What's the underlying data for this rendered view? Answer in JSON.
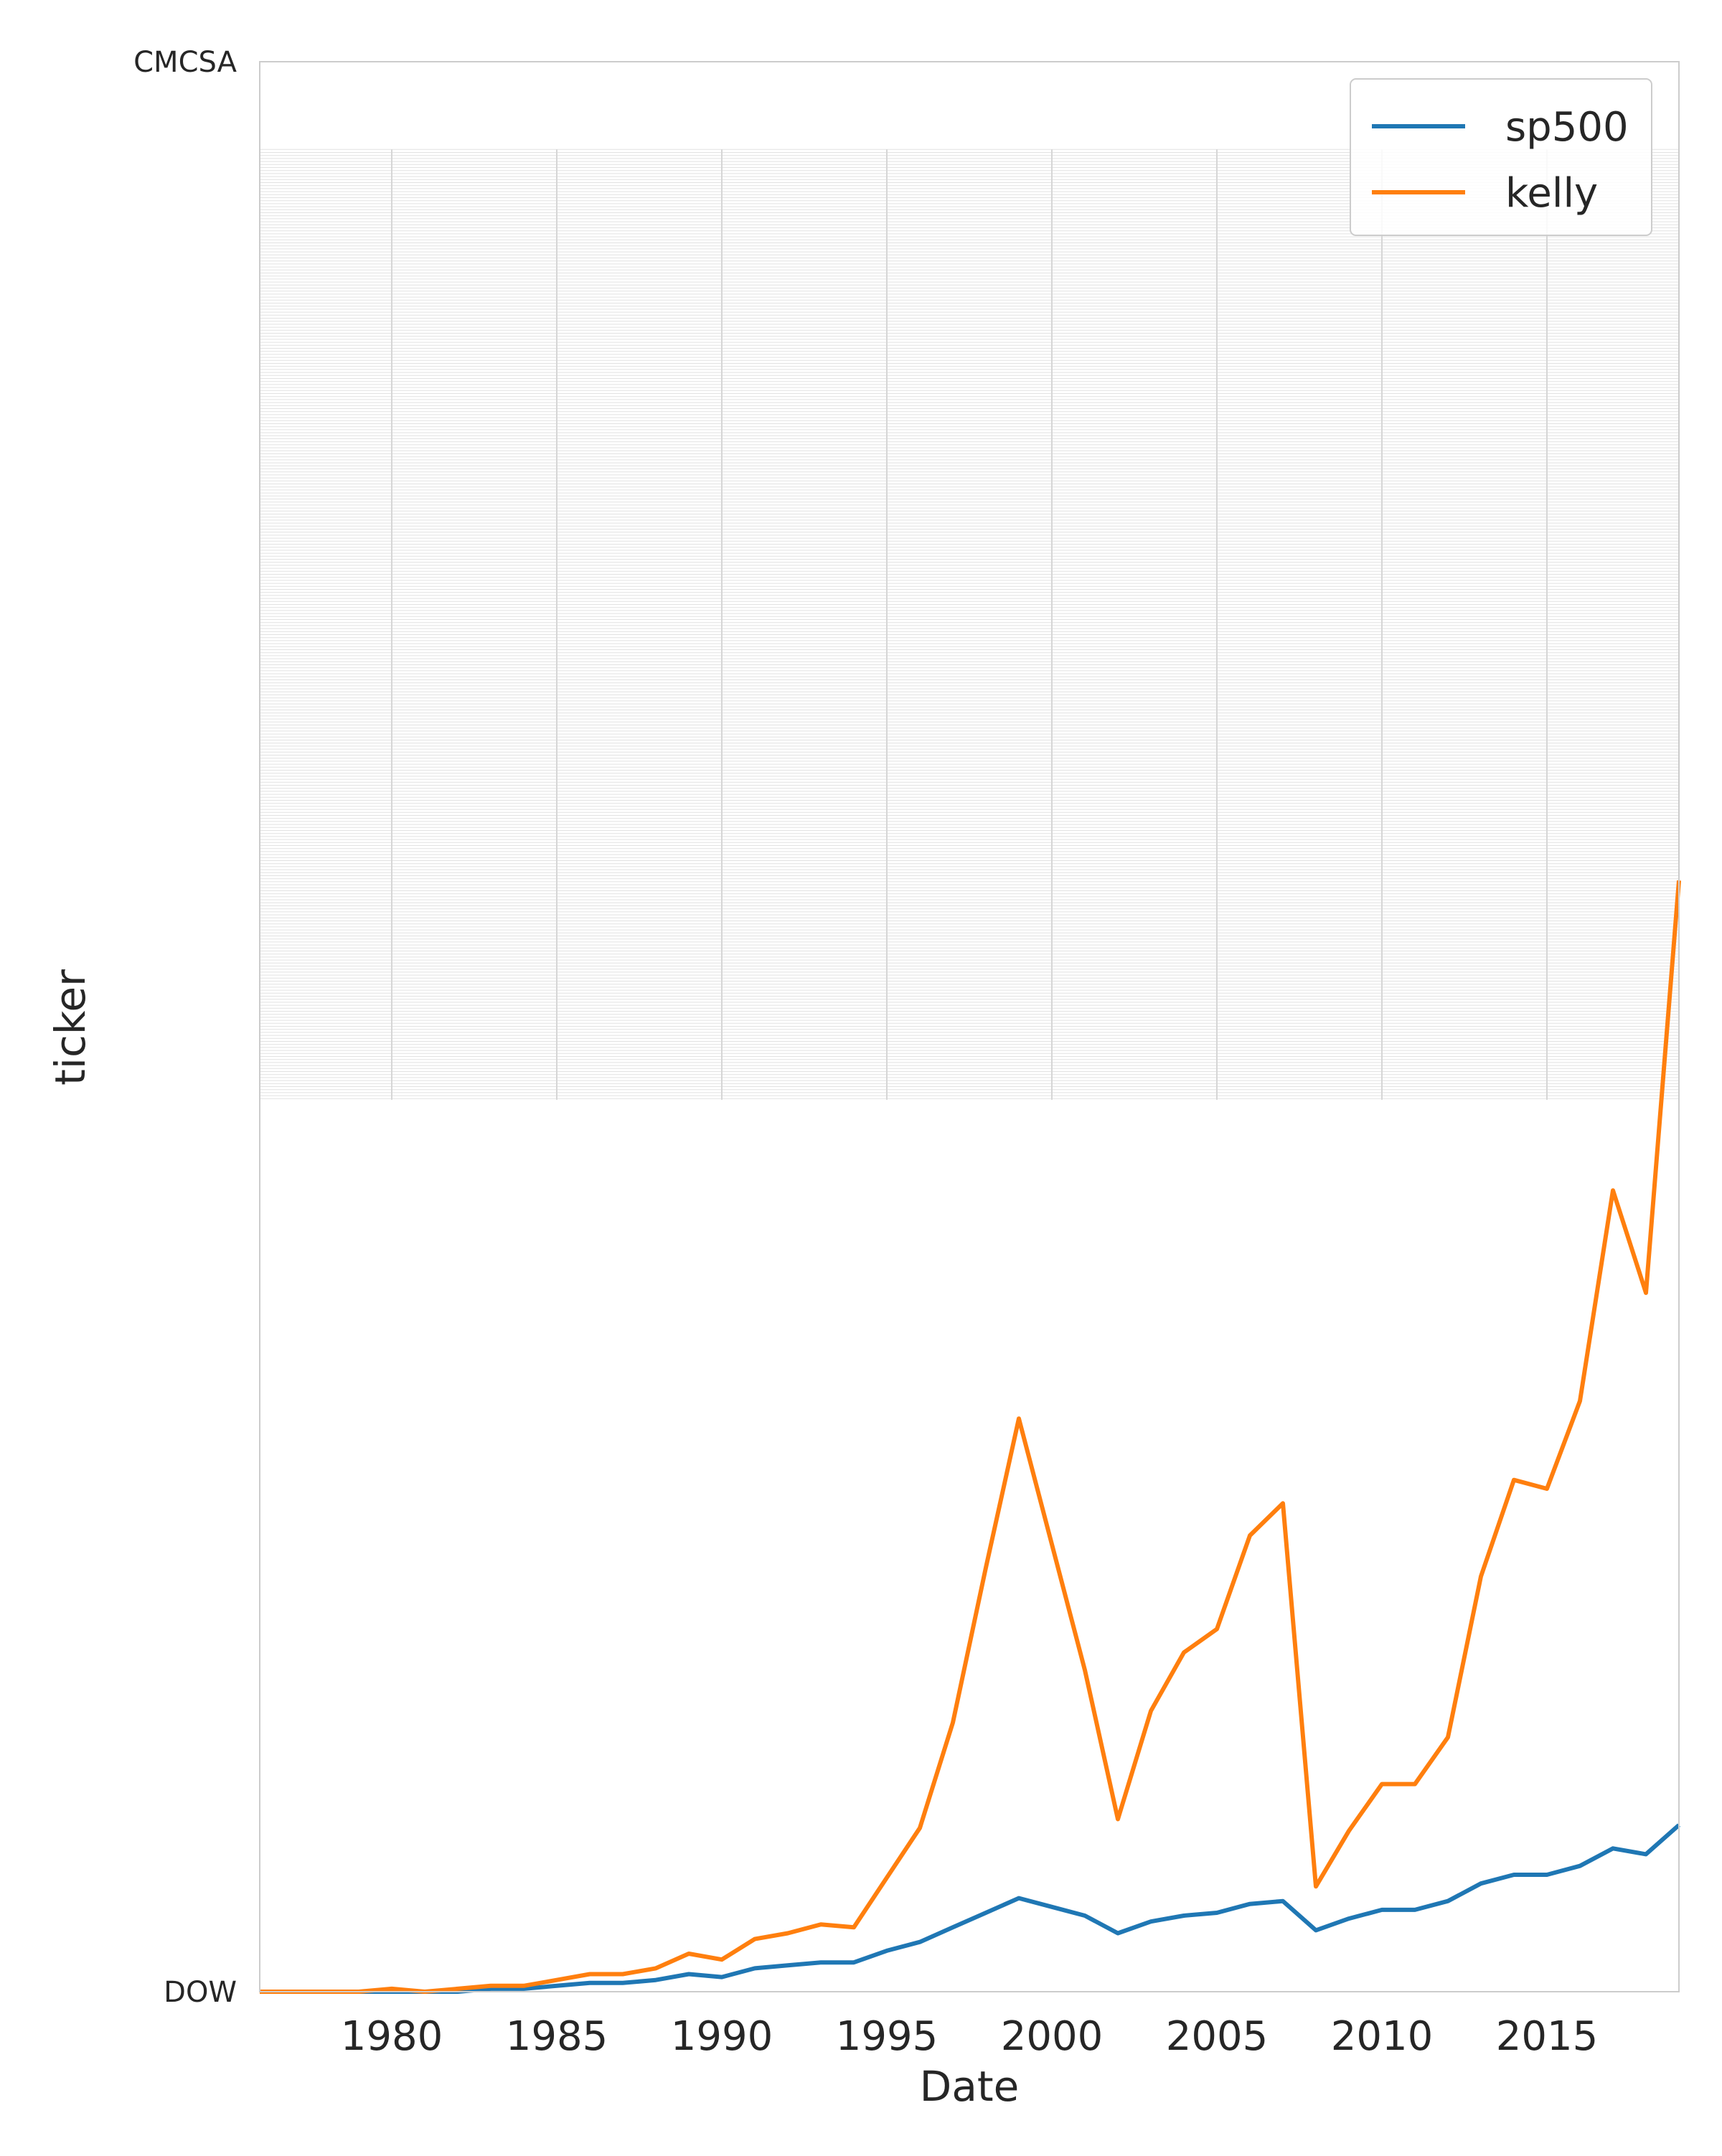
{
  "chart_data": {
    "type": "line",
    "title": "",
    "xlabel": "Date",
    "ylabel": "ticker",
    "xlim": [
      1976,
      2019
    ],
    "x_ticks": [
      1980,
      1985,
      1990,
      1995,
      2000,
      2005,
      2010,
      2015
    ],
    "y_tick_labels_note": "hundreds of overlapping ticker labels on the y axis; only the first and last are legible",
    "y_tick_first": "DOW",
    "y_tick_last": "CMCSA",
    "grid": true,
    "legend_position": "top-right",
    "x": [
      1976,
      1977,
      1978,
      1979,
      1980,
      1981,
      1982,
      1983,
      1984,
      1985,
      1986,
      1987,
      1988,
      1989,
      1990,
      1991,
      1992,
      1993,
      1994,
      1995,
      1996,
      1997,
      1998,
      1999,
      2000,
      2001,
      2002,
      2003,
      2004,
      2005,
      2006,
      2007,
      2008,
      2009,
      2010,
      2011,
      2012,
      2013,
      2014,
      2015,
      2016,
      2017,
      2018,
      2019
    ],
    "series": [
      {
        "name": "sp500",
        "color": "#1f77b4",
        "values": [
          0.0,
          0.0,
          0.0,
          0.0,
          0.0,
          0.0,
          0.0,
          0.1,
          0.1,
          0.2,
          0.3,
          0.3,
          0.4,
          0.6,
          0.5,
          0.8,
          0.9,
          1.0,
          1.0,
          1.4,
          1.7,
          2.2,
          2.7,
          3.2,
          2.9,
          2.6,
          2.0,
          2.4,
          2.6,
          2.7,
          3.0,
          3.1,
          2.1,
          2.5,
          2.8,
          2.8,
          3.1,
          3.7,
          4.0,
          4.0,
          4.3,
          4.9,
          4.7,
          5.7
        ]
      },
      {
        "name": "kelly",
        "color": "#ff7f0e",
        "values": [
          0.0,
          0.0,
          0.0,
          0.0,
          0.1,
          0.0,
          0.1,
          0.2,
          0.2,
          0.4,
          0.6,
          0.6,
          0.8,
          1.3,
          1.1,
          1.8,
          2.0,
          2.3,
          2.2,
          3.9,
          5.6,
          9.2,
          14.5,
          19.6,
          15.3,
          11.0,
          5.9,
          9.6,
          11.6,
          12.4,
          15.6,
          16.7,
          3.6,
          5.5,
          7.1,
          7.1,
          8.7,
          14.2,
          17.5,
          17.2,
          20.2,
          27.4,
          23.9,
          38.0
        ]
      }
    ],
    "gridband_value_top": 63.0,
    "gridband_value_bottom": 30.5
  }
}
